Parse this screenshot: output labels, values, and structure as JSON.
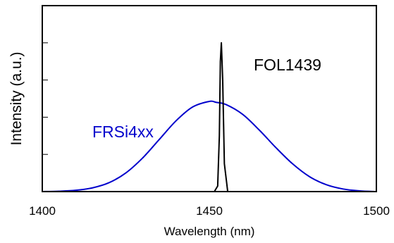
{
  "chart_data": {
    "type": "line",
    "title": "",
    "xlabel": "Wavelength (nm)",
    "ylabel": "Intensity (a.u.)",
    "xlim": [
      1400,
      1500
    ],
    "ylim": [
      0,
      1
    ],
    "x_ticks": [
      1400,
      1450,
      1500
    ],
    "x_tick_labels": [
      "1400",
      "1450",
      "1500"
    ],
    "y_ticks": [
      0.2,
      0.4,
      0.6,
      0.8
    ],
    "y_tick_labels_shown": false,
    "grid": false,
    "legend": "none (inline labels)",
    "series": [
      {
        "name": "FRSi4xx",
        "color": "#0000cc",
        "x": [
          1400,
          1405,
          1410,
          1415,
          1420,
          1425,
          1430,
          1435,
          1440,
          1445,
          1450,
          1452,
          1455,
          1460,
          1465,
          1470,
          1475,
          1480,
          1485,
          1490,
          1495,
          1500
        ],
        "y": [
          0.0,
          0.002,
          0.007,
          0.02,
          0.048,
          0.1,
          0.18,
          0.28,
          0.38,
          0.455,
          0.485,
          0.48,
          0.468,
          0.415,
          0.33,
          0.235,
          0.148,
          0.08,
          0.037,
          0.014,
          0.004,
          0.0
        ]
      },
      {
        "name": "FOL1439",
        "color": "#000000",
        "x": [
          1400,
          1451.5,
          1452.5,
          1453.0,
          1453.3,
          1453.6,
          1454.0,
          1454.5,
          1455.5,
          1500
        ],
        "y": [
          0.0,
          0.0,
          0.03,
          0.3,
          0.7,
          0.8,
          0.6,
          0.15,
          0.0,
          0.0
        ]
      }
    ]
  }
}
